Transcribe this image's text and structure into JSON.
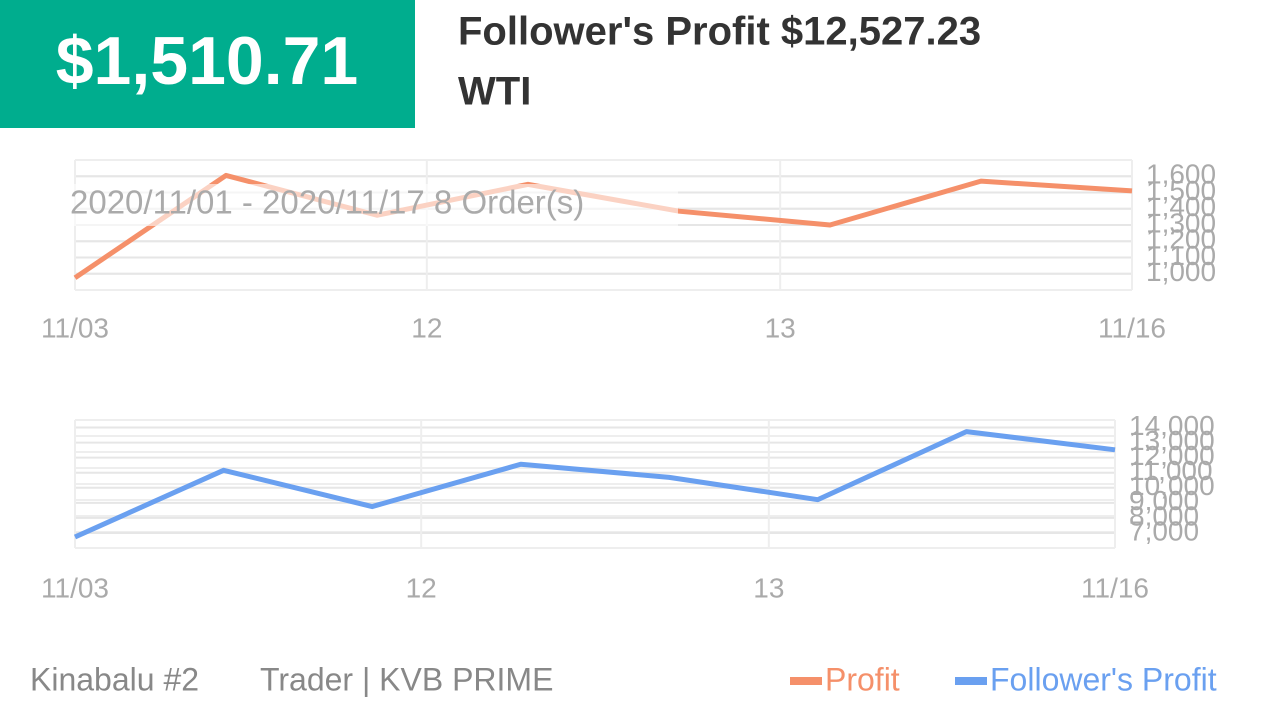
{
  "header": {
    "amount": "$1,510.71",
    "title": "Follower's Profit $12,527.23",
    "symbol": "WTI"
  },
  "date_range": "2020/11/01 - 2020/11/17  8 Order(s)",
  "chart_data": [
    {
      "type": "line",
      "x": [
        0,
        1,
        2,
        3,
        4,
        5,
        6,
        7
      ],
      "series": [
        {
          "name": "Profit",
          "color": "#f5906a",
          "values": [
            975,
            1605,
            1360,
            1550,
            1385,
            1300,
            1570,
            1510
          ]
        }
      ],
      "xlim": [
        0,
        7
      ],
      "xticks": [
        {
          "value": 0,
          "label": "11/03"
        },
        {
          "value": 2.33,
          "label": "12"
        },
        {
          "value": 4.67,
          "label": "13"
        },
        {
          "value": 7,
          "label": "11/16"
        }
      ],
      "ylim": [
        900,
        1700
      ],
      "yticks": [
        {
          "value": 1000,
          "label": "1,000"
        },
        {
          "value": 1100,
          "label": "1,100"
        },
        {
          "value": 1200,
          "label": "1,200"
        },
        {
          "value": 1300,
          "label": "1,300"
        },
        {
          "value": 1400,
          "label": "1,400"
        },
        {
          "value": 1500,
          "label": "1,500"
        },
        {
          "value": 1600,
          "label": "1,600"
        }
      ],
      "grid": true
    },
    {
      "type": "line",
      "x": [
        0,
        1,
        2,
        3,
        4,
        5,
        6,
        7
      ],
      "series": [
        {
          "name": "Follower's Profit",
          "color": "#6aa0f0",
          "values": [
            6730,
            11160,
            8750,
            11560,
            10690,
            9210,
            13730,
            12520
          ]
        }
      ],
      "xlim": [
        0,
        7
      ],
      "xticks": [
        {
          "value": 0,
          "label": "11/03"
        },
        {
          "value": 2.33,
          "label": "12"
        },
        {
          "value": 4.67,
          "label": "13"
        },
        {
          "value": 7,
          "label": "11/16"
        }
      ],
      "ylim": [
        6000,
        14500
      ],
      "yticks": [
        {
          "value": 7000,
          "label": "7,000"
        },
        {
          "value": 8000,
          "label": "8,000"
        },
        {
          "value": 9000,
          "label": "9,000"
        },
        {
          "value": 10000,
          "label": "10,000"
        },
        {
          "value": 11000,
          "label": "11,000"
        },
        {
          "value": 12000,
          "label": "12,000"
        },
        {
          "value": 13000,
          "label": "13,000"
        },
        {
          "value": 14000,
          "label": "14,000"
        }
      ],
      "grid": true
    }
  ],
  "footer": {
    "name": "Kinabalu #2",
    "role": "Trader | KVB PRIME"
  }
}
